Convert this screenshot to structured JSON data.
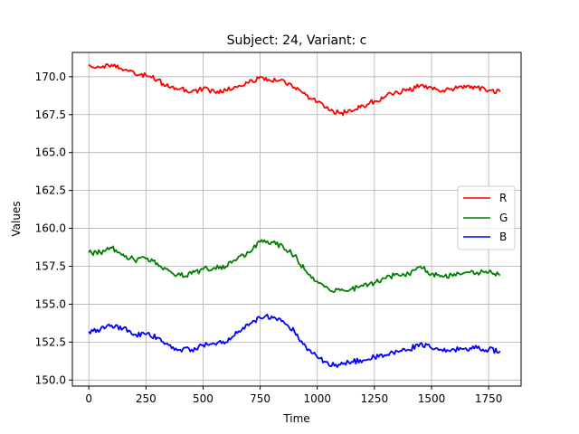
{
  "chart_data": {
    "type": "line",
    "title": "Subject: 24, Variant: c",
    "xlabel": "Time",
    "ylabel": "Values",
    "xlim": [
      -72,
      1892
    ],
    "ylim": [
      149.6,
      171.6
    ],
    "xticks": [
      0,
      250,
      500,
      750,
      1000,
      1250,
      1500,
      1750
    ],
    "yticks": [
      150.0,
      152.5,
      155.0,
      157.5,
      160.0,
      162.5,
      165.0,
      167.5,
      170.0
    ],
    "xtick_labels": [
      "0",
      "250",
      "500",
      "750",
      "1000",
      "1250",
      "1500",
      "1750"
    ],
    "ytick_labels": [
      "150.0",
      "152.5",
      "155.0",
      "157.5",
      "160.0",
      "162.5",
      "165.0",
      "167.5",
      "170.0"
    ],
    "grid": true,
    "legend_position": "center-right",
    "x": [
      0,
      50,
      100,
      150,
      200,
      250,
      300,
      350,
      400,
      450,
      500,
      550,
      600,
      650,
      700,
      750,
      800,
      850,
      900,
      950,
      1000,
      1050,
      1100,
      1150,
      1200,
      1250,
      1300,
      1350,
      1400,
      1450,
      1500,
      1550,
      1600,
      1650,
      1700,
      1750,
      1800
    ],
    "series": [
      {
        "name": "R",
        "color": "#ff0000",
        "values": [
          170.8,
          170.6,
          170.8,
          170.4,
          170.2,
          170.1,
          169.8,
          169.3,
          169.2,
          169.0,
          169.2,
          169.0,
          169.1,
          169.3,
          169.6,
          170.0,
          169.7,
          169.8,
          169.3,
          168.8,
          168.3,
          167.8,
          167.6,
          167.7,
          168.1,
          168.4,
          168.7,
          169.0,
          169.1,
          169.4,
          169.3,
          169.1,
          169.2,
          169.3,
          169.3,
          169.1,
          169.0
        ]
      },
      {
        "name": "G",
        "color": "#008000",
        "values": [
          158.4,
          158.4,
          158.7,
          158.3,
          157.9,
          158.0,
          157.7,
          157.2,
          156.9,
          157.0,
          157.3,
          157.4,
          157.5,
          158.0,
          158.4,
          159.1,
          159.1,
          158.8,
          158.2,
          157.2,
          156.5,
          156.0,
          155.9,
          156.0,
          156.2,
          156.4,
          156.7,
          157.0,
          157.0,
          157.5,
          157.0,
          156.8,
          157.0,
          157.1,
          157.1,
          157.1,
          156.9
        ]
      },
      {
        "name": "B",
        "color": "#0000ff",
        "values": [
          153.2,
          153.3,
          153.6,
          153.4,
          153.0,
          153.0,
          152.8,
          152.3,
          152.0,
          152.0,
          152.3,
          152.4,
          152.5,
          153.1,
          153.6,
          154.1,
          154.2,
          153.9,
          153.2,
          152.2,
          151.5,
          151.0,
          151.0,
          151.2,
          151.3,
          151.5,
          151.6,
          151.9,
          152.0,
          152.4,
          152.1,
          151.9,
          152.0,
          152.1,
          152.1,
          152.0,
          151.9
        ]
      }
    ]
  }
}
